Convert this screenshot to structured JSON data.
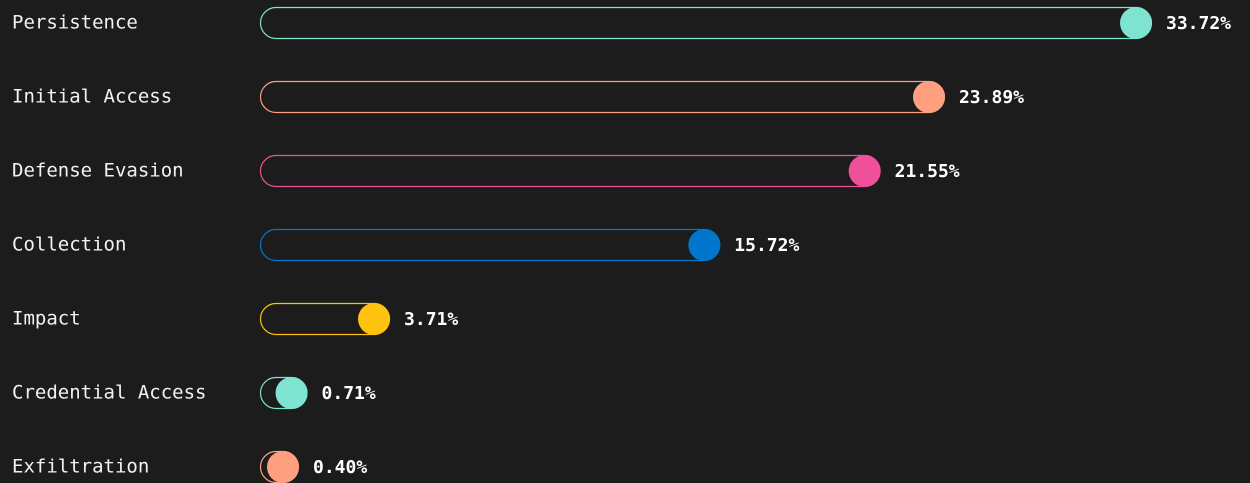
{
  "chart_data": {
    "type": "bar",
    "orientation": "horizontal",
    "categories": [
      "Persistence",
      "Initial Access",
      "Defense Evasion",
      "Collection",
      "Impact",
      "Credential Access",
      "Exfiltration"
    ],
    "values": [
      33.72,
      23.89,
      21.55,
      15.72,
      3.71,
      0.71,
      0.4
    ],
    "value_labels": [
      "33.72%",
      "23.89%",
      "21.55%",
      "15.72%",
      "3.71%",
      "0.71%",
      "0.40%"
    ],
    "colors": [
      "#7ee3d0",
      "#ff9f80",
      "#f0509a",
      "#0077cc",
      "#ffc20e",
      "#7ee3d0",
      "#ff9f80"
    ]
  }
}
